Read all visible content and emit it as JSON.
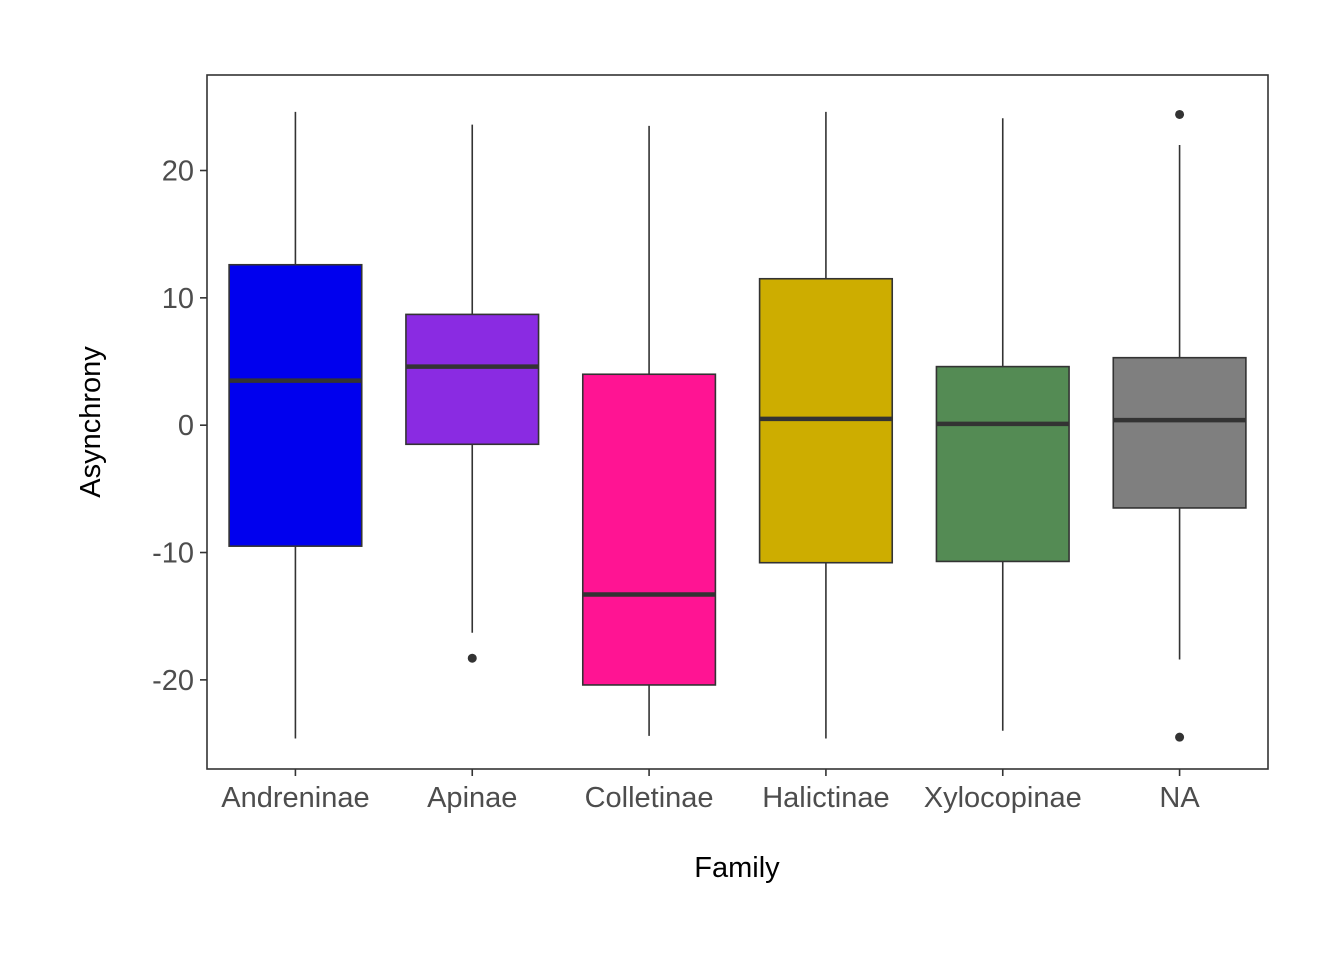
{
  "chart_data": {
    "type": "box",
    "title": "",
    "xlabel": "Family",
    "ylabel": "Asynchrony",
    "ylim": [
      -27,
      27.5
    ],
    "yticks": [
      -20,
      -10,
      0,
      10,
      20
    ],
    "ytick_labels": [
      "-20",
      "-10",
      "0",
      "10",
      "20"
    ],
    "grid": false,
    "legend": "none",
    "categories": [
      "Andreninae",
      "Apinae",
      "Colletinae",
      "Halictinae",
      "Xylocopinae",
      "NA"
    ],
    "boxes": [
      {
        "category": "Andreninae",
        "color": "#0000ee",
        "whisker_low": -24.6,
        "q1": -9.5,
        "median": 3.5,
        "q3": 12.6,
        "whisker_high": 24.6,
        "outliers": []
      },
      {
        "category": "Apinae",
        "color": "#8a2be2",
        "whisker_low": -16.3,
        "q1": -1.5,
        "median": 4.6,
        "q3": 8.7,
        "whisker_high": 23.6,
        "outliers": [
          -18.3
        ]
      },
      {
        "category": "Colletinae",
        "color": "#ff1493",
        "whisker_low": -24.4,
        "q1": -20.4,
        "median": -13.3,
        "q3": 4.0,
        "whisker_high": 23.5,
        "outliers": []
      },
      {
        "category": "Halictinae",
        "color": "#cdad00",
        "whisker_low": -24.6,
        "q1": -10.8,
        "median": 0.5,
        "q3": 11.5,
        "whisker_high": 24.6,
        "outliers": []
      },
      {
        "category": "Xylocopinae",
        "color": "#548b54",
        "whisker_low": -24.0,
        "q1": -10.7,
        "median": 0.1,
        "q3": 4.6,
        "whisker_high": 24.1,
        "outliers": []
      },
      {
        "category": "NA",
        "color": "#7f7f7f",
        "whisker_low": -18.4,
        "q1": -6.5,
        "median": 0.4,
        "q3": 5.3,
        "whisker_high": 22.0,
        "outliers": [
          24.4,
          -24.5
        ]
      }
    ]
  }
}
